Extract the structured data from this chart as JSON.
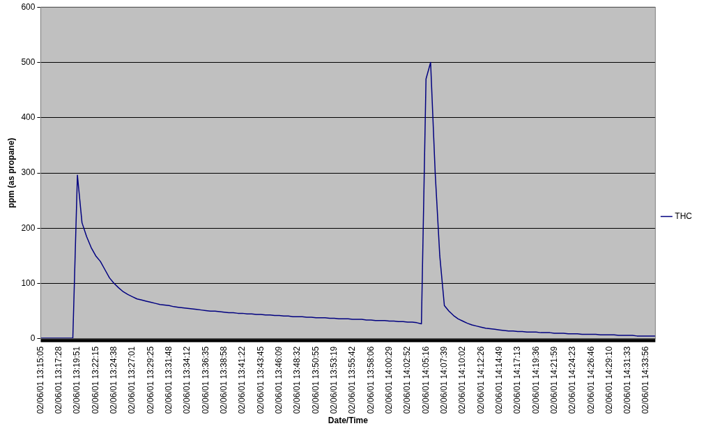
{
  "chart_data": {
    "type": "line",
    "xlabel": "Date/Time",
    "ylabel": "ppm (as propane)",
    "categories": [
      "02/06/01 13:15:05",
      null,
      null,
      null,
      "02/06/01 13:17:28",
      null,
      null,
      null,
      "02/06/01 13:19:51",
      null,
      null,
      null,
      "02/06/01 13:22:15",
      null,
      null,
      null,
      "02/06/01 13:24:38",
      null,
      null,
      null,
      "02/06/01 13:27:01",
      null,
      null,
      null,
      "02/06/01 13:29:25",
      null,
      null,
      null,
      "02/06/01 13:31:48",
      null,
      null,
      null,
      "02/06/01 13:34:12",
      null,
      null,
      null,
      "02/06/01 13:36:35",
      null,
      null,
      null,
      "02/06/01 13:38:58",
      null,
      null,
      null,
      "02/06/01 13:41:22",
      null,
      null,
      null,
      "02/06/01 13:43:45",
      null,
      null,
      null,
      "02/06/01 13:46:09",
      null,
      null,
      null,
      "02/06/01 13:48:32",
      null,
      null,
      null,
      "02/06/01 13:50:55",
      null,
      null,
      null,
      "02/06/01 13:53:19",
      null,
      null,
      null,
      "02/06/01 13:55:42",
      null,
      null,
      null,
      "02/06/01 13:58:06",
      null,
      null,
      null,
      "02/06/01 14:00:29",
      null,
      null,
      null,
      "02/06/01 14:02:52",
      null,
      null,
      null,
      "02/06/01 14:05:16",
      null,
      null,
      null,
      "02/06/01 14:07:39",
      null,
      null,
      null,
      "02/06/01 14:10:02",
      null,
      null,
      null,
      "02/06/01 14:12:26",
      null,
      null,
      null,
      "02/06/01 14:14:49",
      null,
      null,
      null,
      "02/06/01 14:17:13",
      null,
      null,
      null,
      "02/06/01 14:19:36",
      null,
      null,
      null,
      "02/06/01 14:21:59",
      null,
      null,
      null,
      "02/06/01 14:24:23",
      null,
      null,
      null,
      "02/06/01 14:26:46",
      null,
      null,
      null,
      "02/06/01 14:29:10",
      null,
      null,
      null,
      "02/06/01 14:31:33",
      null,
      null,
      null,
      "02/06/01 14:33:56",
      null,
      null
    ],
    "series": [
      {
        "name": "THC",
        "color": "#000080",
        "values": [
          1,
          1,
          1,
          1,
          1,
          1,
          1,
          1,
          296,
          210,
          185,
          165,
          150,
          140,
          125,
          110,
          100,
          92,
          85,
          80,
          76,
          72,
          70,
          68,
          66,
          64,
          62,
          61,
          60,
          58,
          57,
          56,
          55,
          54,
          53,
          52,
          51,
          50,
          50,
          49,
          48,
          47,
          47,
          46,
          46,
          45,
          45,
          44,
          44,
          43,
          43,
          42,
          42,
          41,
          41,
          40,
          40,
          40,
          39,
          39,
          38,
          38,
          38,
          37,
          37,
          36,
          36,
          36,
          35,
          35,
          35,
          34,
          34,
          33,
          33,
          33,
          32,
          32,
          31,
          31,
          30,
          30,
          29,
          27,
          470,
          500,
          300,
          150,
          60,
          50,
          42,
          36,
          32,
          28,
          25,
          23,
          21,
          19,
          18,
          17,
          16,
          15,
          14,
          14,
          13,
          13,
          12,
          12,
          12,
          11,
          11,
          11,
          10,
          10,
          10,
          9,
          9,
          9,
          8,
          8,
          8,
          8,
          7,
          7,
          7,
          7,
          6,
          6,
          6,
          6,
          5,
          5,
          5,
          5,
          5
        ]
      }
    ],
    "ylim": [
      0,
      600
    ],
    "yticks": [
      0,
      100,
      200,
      300,
      400,
      500,
      600
    ],
    "grid": "y",
    "legend": "right",
    "marker": "none",
    "line_style": "solid"
  }
}
